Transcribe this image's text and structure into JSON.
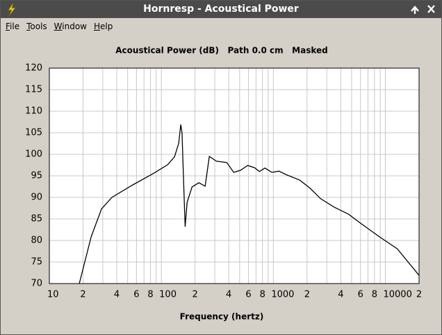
{
  "window": {
    "title": "Hornresp - Acoustical Power"
  },
  "menu": [
    "File",
    "Tools",
    "Window",
    "Help"
  ],
  "chart_data": {
    "type": "line",
    "title": "Acoustical Power (dB)   Path 0.0 cm   Masked",
    "x_label": "Frequency (hertz)",
    "xscale": "log",
    "x": [
      18.5,
      23.6,
      29.2,
      36.2,
      55.6,
      85.5,
      114,
      131,
      143,
      149,
      153,
      158,
      163,
      170,
      188,
      216,
      246,
      268,
      310,
      384,
      443,
      511,
      589,
      679,
      751,
      841,
      972,
      1122,
      1295,
      1723,
      2134,
      2644,
      3522,
      4690,
      6240,
      8913,
      12760,
      20000
    ],
    "values": [
      70,
      80.8,
      87.3,
      90.0,
      92.9,
      95.6,
      97.6,
      99.4,
      102.6,
      106.9,
      105,
      93.7,
      83.2,
      88.9,
      92.4,
      93.4,
      92.6,
      99.5,
      98.4,
      98.1,
      95.8,
      96.3,
      97.4,
      96.9,
      96.0,
      96.8,
      95.8,
      96.1,
      95.3,
      94.0,
      92.1,
      89.7,
      87.7,
      86.1,
      83.7,
      80.8,
      78.1,
      71.9
    ],
    "color": "#000000",
    "xlim": [
      10,
      20000
    ],
    "ylim": [
      70,
      120
    ],
    "xticks": [
      10,
      {
        "value": 20,
        "label": "2"
      },
      {
        "value": 40,
        "label": "4"
      },
      {
        "value": 60,
        "label": "6"
      },
      {
        "value": 80,
        "label": "8"
      },
      100,
      {
        "value": 200,
        "label": "2"
      },
      {
        "value": 400,
        "label": "4"
      },
      {
        "value": 600,
        "label": "6"
      },
      {
        "value": 800,
        "label": "8"
      },
      1000,
      {
        "value": 2000,
        "label": "2"
      },
      {
        "value": 4000,
        "label": "4"
      },
      {
        "value": 6000,
        "label": "6"
      },
      {
        "value": 8000,
        "label": "8"
      },
      10000,
      {
        "value": 20000,
        "label": "2"
      }
    ],
    "x_minor_ticks": [
      30,
      50,
      70,
      90,
      300,
      500,
      700,
      900,
      3000,
      5000,
      7000,
      9000
    ],
    "yticks": [
      70,
      75,
      80,
      85,
      90,
      95,
      100,
      105,
      110,
      115,
      120
    ],
    "grid": true
  }
}
